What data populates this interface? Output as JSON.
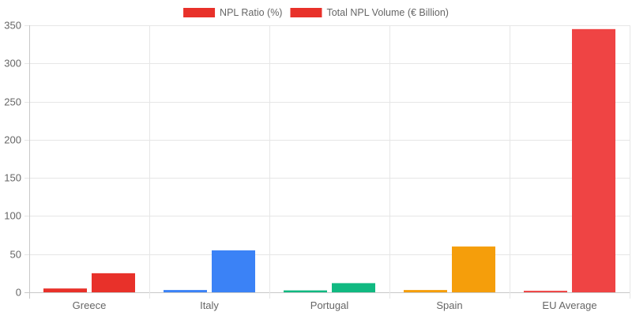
{
  "chart_data": {
    "type": "bar",
    "categories": [
      "Greece",
      "Italy",
      "Portugal",
      "Spain",
      "EU Average"
    ],
    "series": [
      {
        "name": "NPL Ratio (%)",
        "values": [
          5.0,
          3.0,
          2.5,
          3.0,
          2.0
        ],
        "colors": [
          "#e8312a",
          "#3b82f6",
          "#10b981",
          "#f59e0b",
          "#ef4444"
        ]
      },
      {
        "name": "Total NPL Volume (€ Billion)",
        "values": [
          25,
          55,
          12,
          60,
          345
        ],
        "colors": [
          "#e8312a",
          "#3b82f6",
          "#10b981",
          "#f59e0b",
          "#ef4444"
        ]
      }
    ],
    "legend_colors": [
      "#e8312a",
      "#e8312a"
    ],
    "ylim": [
      0,
      350
    ],
    "yticks": [
      0,
      50,
      100,
      150,
      200,
      250,
      300,
      350
    ],
    "grid": true,
    "legend_position": "top-center"
  }
}
